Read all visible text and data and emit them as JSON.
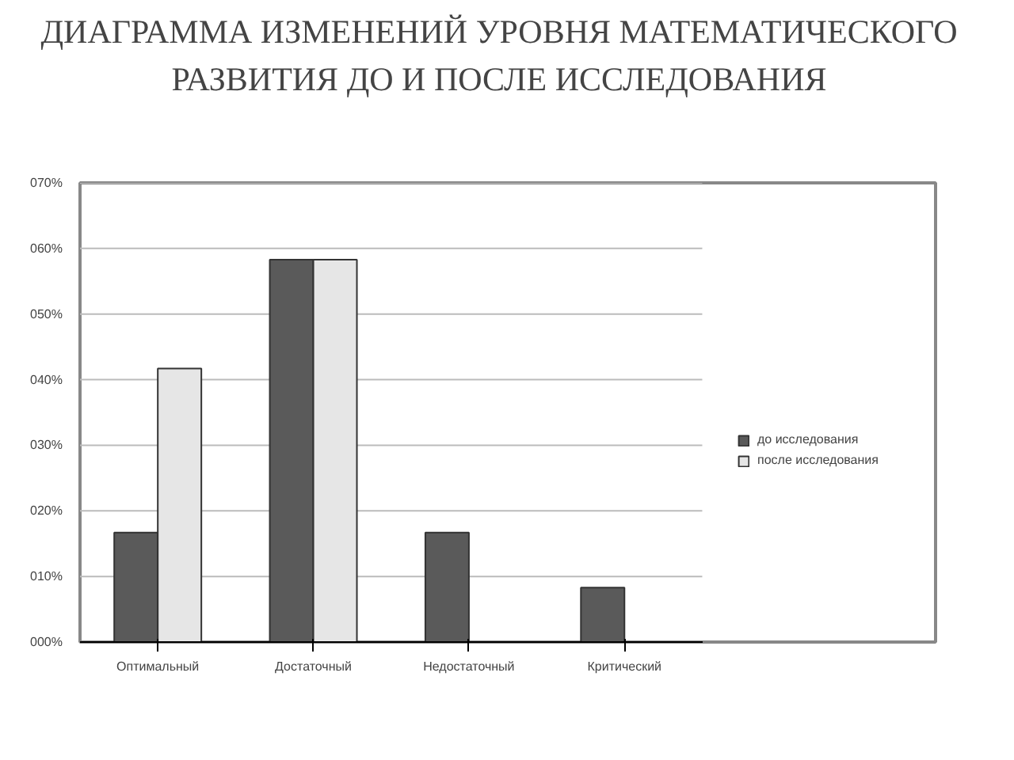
{
  "chart_data": {
    "type": "bar",
    "title": "ДИАГРАММА ИЗМЕНЕНИЙ УРОВНЯ МАТЕМАТИЧЕСКОГО РАЗВИТИЯ ДО И ПОСЛЕ ИССЛЕДОВАНИЯ",
    "categories": [
      "Оптимальный",
      "Достаточный",
      "Недостаточный",
      "Критический"
    ],
    "series": [
      {
        "name": "до исследования",
        "color": "#5a5a5a",
        "values": [
          16.7,
          58.3,
          16.7,
          8.3
        ]
      },
      {
        "name": "после исследования",
        "color": "#e6e6e6",
        "values": [
          41.7,
          58.3,
          0,
          0
        ]
      }
    ],
    "ylim": [
      0,
      70
    ],
    "yticks": [
      {
        "value": 0,
        "label": "000%"
      },
      {
        "value": 10,
        "label": "010%"
      },
      {
        "value": 20,
        "label": "020%"
      },
      {
        "value": 30,
        "label": "030%"
      },
      {
        "value": 40,
        "label": "040%"
      },
      {
        "value": 50,
        "label": "050%"
      },
      {
        "value": 60,
        "label": "060%"
      },
      {
        "value": 70,
        "label": "070%"
      }
    ],
    "grid": "y",
    "legend": "right"
  }
}
